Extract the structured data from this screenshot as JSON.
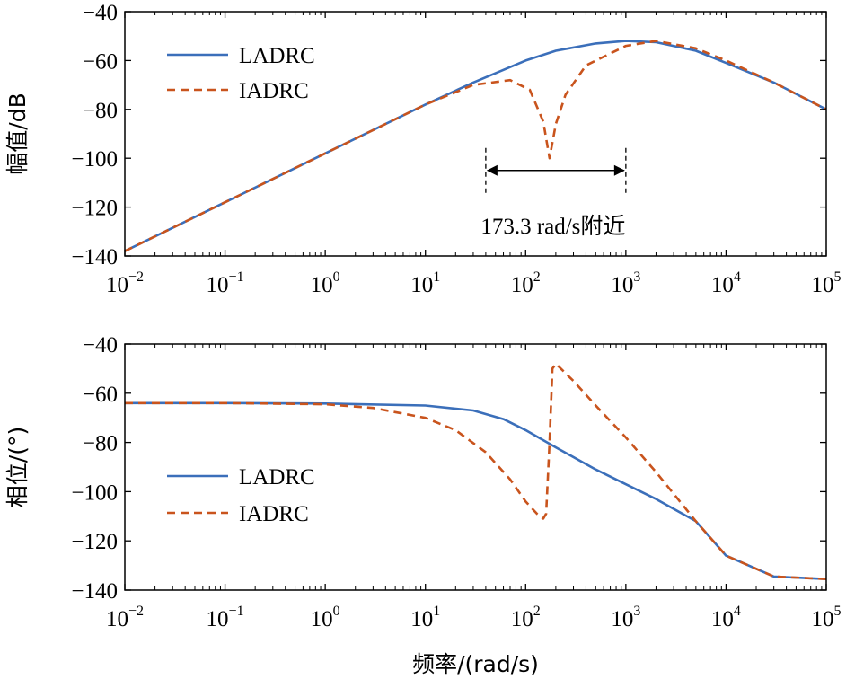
{
  "colors": {
    "LADRC": "#3b6fba",
    "IADRC": "#c9541d",
    "axis": "#000000"
  },
  "chart_data": [
    {
      "type": "line",
      "xscale": "log",
      "xlim": [
        0.01,
        100000
      ],
      "ylim": [
        -140,
        -40
      ],
      "ylabel": "幅值/dB",
      "xlabel": "",
      "x_ticks": [
        {
          "base": "10",
          "exp": "−2"
        },
        {
          "base": "10",
          "exp": "−1"
        },
        {
          "base": "10",
          "exp": "0"
        },
        {
          "base": "10",
          "exp": "1"
        },
        {
          "base": "10",
          "exp": "2"
        },
        {
          "base": "10",
          "exp": "3"
        },
        {
          "base": "10",
          "exp": "4"
        },
        {
          "base": "10",
          "exp": "5"
        }
      ],
      "y_ticks": [
        "−40",
        "−60",
        "−80",
        "−100",
        "−120",
        "−140"
      ],
      "legend": {
        "position": "top-left",
        "entries": [
          "LADRC",
          "IADRC"
        ]
      },
      "annotation": {
        "text": "173.3 rad/s附近",
        "x_range": [
          40,
          1000
        ],
        "y": -105
      },
      "series": [
        {
          "name": "LADRC",
          "style": "solid",
          "x": [
            0.01,
            0.1,
            1,
            10,
            30,
            100,
            200,
            500,
            1000,
            2000,
            5000,
            10000,
            30000,
            100000
          ],
          "y": [
            -138,
            -118,
            -98,
            -78,
            -69,
            -60,
            -56,
            -53,
            -52,
            -52.5,
            -56,
            -61,
            -69,
            -80
          ]
        },
        {
          "name": "IADRC",
          "style": "dashed",
          "x": [
            0.01,
            0.1,
            1,
            10,
            30,
            70,
            110,
            150,
            173.3,
            200,
            250,
            400,
            1000,
            2000,
            5000,
            10000,
            30000,
            100000
          ],
          "y": [
            -138,
            -118,
            -98,
            -78,
            -70,
            -68,
            -72,
            -85,
            -100,
            -86,
            -74,
            -62,
            -54,
            -52,
            -55,
            -60,
            -69,
            -80
          ]
        }
      ]
    },
    {
      "type": "line",
      "xscale": "log",
      "xlim": [
        0.01,
        100000
      ],
      "ylim": [
        -140,
        -40
      ],
      "ylabel": "相位/(°)",
      "xlabel": "频率/(rad/s)",
      "x_ticks": [
        {
          "base": "10",
          "exp": "−2"
        },
        {
          "base": "10",
          "exp": "−1"
        },
        {
          "base": "10",
          "exp": "0"
        },
        {
          "base": "10",
          "exp": "1"
        },
        {
          "base": "10",
          "exp": "2"
        },
        {
          "base": "10",
          "exp": "3"
        },
        {
          "base": "10",
          "exp": "4"
        },
        {
          "base": "10",
          "exp": "5"
        }
      ],
      "y_ticks": [
        "−40",
        "−60",
        "−80",
        "−100",
        "−120",
        "−140"
      ],
      "legend": {
        "position": "lower-left",
        "entries": [
          "LADRC",
          "IADRC"
        ]
      },
      "series": [
        {
          "name": "LADRC",
          "style": "solid",
          "x": [
            0.01,
            0.1,
            1,
            10,
            30,
            60,
            100,
            200,
            500,
            1000,
            2000,
            5000,
            10000,
            30000,
            100000
          ],
          "y": [
            -64,
            -64,
            -64.2,
            -65,
            -67,
            -70.5,
            -75,
            -82,
            -91,
            -97,
            -103,
            -112,
            -126,
            -134.5,
            -135.5
          ]
        },
        {
          "name": "IADRC",
          "style": "dashed",
          "x": [
            0.01,
            0.1,
            1,
            3,
            10,
            20,
            40,
            70,
            100,
            130,
            150,
            160,
            173.3,
            185,
            200,
            300,
            500,
            1000,
            2000,
            5000,
            10000,
            30000,
            100000
          ],
          "y": [
            -64,
            -64,
            -64.5,
            -66,
            -70,
            -75,
            -84,
            -95,
            -104,
            -109,
            -111,
            -109,
            -80,
            -50,
            -48,
            -55,
            -65,
            -78,
            -92,
            -112,
            -126,
            -134.5,
            -135.5
          ]
        }
      ]
    }
  ]
}
